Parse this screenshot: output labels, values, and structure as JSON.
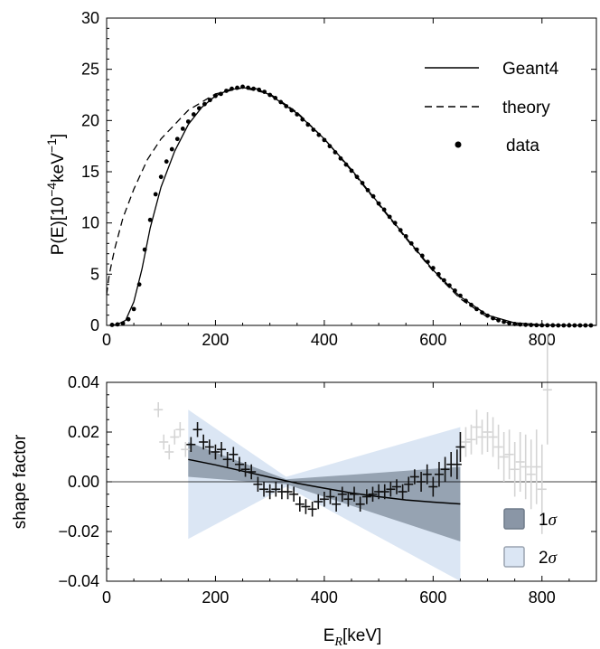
{
  "chart_data": [
    {
      "type": "line",
      "ylabel_base": "P(E)[10",
      "ylabel_exp": "−4",
      "ylabel_unit": "keV",
      "ylabel_unit_exp": "−1",
      "ylabel_close": "]",
      "xlim": [
        0,
        900
      ],
      "ylim": [
        0,
        30
      ],
      "xticks": [
        "0",
        "200",
        "400",
        "600",
        "800"
      ],
      "yticks": [
        "0",
        "5",
        "10",
        "15",
        "20",
        "25",
        "30"
      ],
      "legend_position": "top-right",
      "series": [
        {
          "name": "Geant4",
          "style": "solid",
          "x": [
            5,
            20,
            35,
            50,
            65,
            80,
            100,
            125,
            150,
            175,
            200,
            225,
            250,
            275,
            300,
            350,
            400,
            450,
            500,
            550,
            600,
            650,
            700,
            750,
            800,
            850,
            900
          ],
          "y": [
            0,
            0.1,
            0.5,
            2.3,
            5.5,
            9.5,
            13.5,
            17.0,
            19.6,
            21.3,
            22.4,
            23.0,
            23.2,
            23.1,
            22.5,
            20.7,
            18.2,
            15.2,
            11.9,
            8.6,
            5.4,
            2.8,
            1.0,
            0.25,
            0.05,
            0.01,
            0
          ]
        },
        {
          "name": "theory",
          "style": "dashed",
          "x": [
            0,
            5,
            15,
            30,
            50,
            75,
            100,
            150,
            200,
            250,
            300,
            350,
            400,
            450,
            500,
            550,
            600,
            650,
            700,
            750,
            770,
            800
          ],
          "y": [
            3.0,
            5.0,
            7.5,
            10.5,
            13.3,
            16.2,
            18.2,
            21.0,
            22.6,
            23.2,
            22.6,
            20.8,
            18.2,
            15.1,
            11.8,
            8.5,
            5.3,
            2.6,
            0.8,
            0.1,
            0.02,
            0
          ]
        },
        {
          "name": "data",
          "style": "points",
          "x": [
            10,
            20,
            30,
            40,
            50,
            60,
            70,
            80,
            90,
            100,
            110,
            120,
            130,
            140,
            150,
            160,
            170,
            180,
            190,
            200,
            210,
            220,
            230,
            240,
            250,
            260,
            270,
            280,
            290,
            300,
            310,
            320,
            330,
            340,
            350,
            360,
            370,
            380,
            390,
            400,
            410,
            420,
            430,
            440,
            450,
            460,
            470,
            480,
            490,
            500,
            510,
            520,
            530,
            540,
            550,
            560,
            570,
            580,
            590,
            600,
            610,
            620,
            630,
            640,
            650,
            660,
            670,
            680,
            690,
            700,
            710,
            720,
            730,
            740,
            750,
            760,
            770,
            780,
            790,
            800,
            810,
            820,
            830,
            840,
            850,
            860,
            870,
            880,
            890
          ],
          "y": [
            0.05,
            0.1,
            0.2,
            0.6,
            1.6,
            4.0,
            7.4,
            10.3,
            12.8,
            14.5,
            16.0,
            17.2,
            18.2,
            19.2,
            19.9,
            20.6,
            21.2,
            21.6,
            22.0,
            22.4,
            22.6,
            22.9,
            23.1,
            23.2,
            23.3,
            23.2,
            23.1,
            23.0,
            22.8,
            22.5,
            22.2,
            21.8,
            21.4,
            21.0,
            20.6,
            20.1,
            19.6,
            19.1,
            18.6,
            18.1,
            17.5,
            16.9,
            16.3,
            15.7,
            15.1,
            14.5,
            13.9,
            13.2,
            12.6,
            11.9,
            11.3,
            10.6,
            10.0,
            9.3,
            8.7,
            8.0,
            7.4,
            6.8,
            6.2,
            5.6,
            5.0,
            4.4,
            3.9,
            3.4,
            2.9,
            2.4,
            2.0,
            1.6,
            1.25,
            0.95,
            0.7,
            0.5,
            0.35,
            0.22,
            0.14,
            0.09,
            0.06,
            0.04,
            0.02,
            0.01,
            0.01,
            0.005,
            0,
            0,
            0,
            0,
            0,
            0,
            0
          ]
        }
      ]
    },
    {
      "type": "scatter",
      "ylabel": "shape factor",
      "xlabel_base": "E",
      "xlabel_sub": "R",
      "xlabel_unit": "[keV]",
      "xlim": [
        0,
        900
      ],
      "ylim": [
        -0.04,
        0.04
      ],
      "xticks": [
        "0",
        "200",
        "400",
        "600",
        "800"
      ],
      "yticks": [
        "−0.04",
        "−0.02",
        "0.00",
        "0.02",
        "0.04"
      ],
      "bands": [
        {
          "name": "1σ",
          "color": "#8a96a6",
          "x": [
            150,
            330,
            650
          ],
          "upper": [
            0.016,
            0.001,
            0.006
          ],
          "lower": [
            0.002,
            -0.001,
            -0.024
          ]
        },
        {
          "name": "2σ",
          "color": "#dbe6f4",
          "x": [
            150,
            330,
            650
          ],
          "upper": [
            0.029,
            0.002,
            0.022
          ],
          "lower": [
            -0.023,
            -0.002,
            -0.04
          ]
        }
      ],
      "fit": {
        "x": [
          150,
          200,
          250,
          300,
          350,
          400,
          450,
          500,
          550,
          600,
          650
        ],
        "y": [
          0.009,
          0.0068,
          0.0043,
          0.0018,
          -0.0006,
          -0.0026,
          -0.0045,
          -0.006,
          -0.0073,
          -0.0082,
          -0.0089
        ]
      },
      "points_in": {
        "x": [
          155,
          167,
          178,
          189,
          200,
          211,
          222,
          233,
          244,
          255,
          266,
          278,
          289,
          300,
          311,
          322,
          333,
          344,
          355,
          366,
          378,
          389,
          400,
          411,
          422,
          433,
          444,
          455,
          466,
          478,
          489,
          500,
          511,
          522,
          533,
          544,
          555,
          566,
          578,
          589,
          600,
          611,
          622,
          633,
          644,
          650
        ],
        "y": [
          0.015,
          0.021,
          0.016,
          0.014,
          0.012,
          0.013,
          0.009,
          0.011,
          0.007,
          0.005,
          0.004,
          -0.001,
          -0.003,
          -0.004,
          -0.003,
          -0.004,
          -0.004,
          -0.005,
          -0.009,
          -0.01,
          -0.011,
          -0.008,
          -0.007,
          -0.006,
          -0.009,
          -0.005,
          -0.007,
          -0.005,
          -0.009,
          -0.006,
          -0.005,
          -0.004,
          -0.004,
          -0.003,
          -0.002,
          -0.004,
          -0.001,
          0.002,
          0.0,
          0.003,
          -0.002,
          0.003,
          0.005,
          0.007,
          0.007,
          0.014
        ],
        "yerr": [
          0.003,
          0.003,
          0.003,
          0.003,
          0.003,
          0.003,
          0.003,
          0.003,
          0.003,
          0.003,
          0.003,
          0.003,
          0.003,
          0.003,
          0.003,
          0.003,
          0.003,
          0.003,
          0.003,
          0.003,
          0.003,
          0.003,
          0.003,
          0.003,
          0.003,
          0.003,
          0.003,
          0.003,
          0.003,
          0.003,
          0.003,
          0.003,
          0.003,
          0.003,
          0.003,
          0.003,
          0.003,
          0.003,
          0.004,
          0.004,
          0.004,
          0.005,
          0.005,
          0.005,
          0.006,
          0.006
        ]
      },
      "points_out": {
        "x": [
          95,
          105,
          115,
          125,
          135,
          145,
          660,
          670,
          680,
          690,
          700,
          710,
          720,
          730,
          740,
          750,
          760,
          770,
          780,
          790,
          800,
          810
        ],
        "y": [
          0.029,
          0.016,
          0.012,
          0.018,
          0.021,
          0.013,
          0.016,
          0.017,
          0.022,
          0.018,
          0.02,
          0.018,
          0.014,
          0.01,
          0.011,
          0.005,
          0.008,
          0.006,
          0.003,
          0.006,
          -0.003,
          0.037
        ],
        "yerr": [
          0.003,
          0.003,
          0.003,
          0.003,
          0.003,
          0.003,
          0.006,
          0.006,
          0.007,
          0.007,
          0.008,
          0.008,
          0.009,
          0.01,
          0.01,
          0.011,
          0.012,
          0.013,
          0.014,
          0.015,
          0.018,
          0.022
        ]
      },
      "legend": [
        {
          "label_sym": "1",
          "label_greek": "σ",
          "color": "#8a96a6"
        },
        {
          "label_sym": "2",
          "label_greek": "σ",
          "color": "#dbe6f4"
        }
      ]
    }
  ]
}
